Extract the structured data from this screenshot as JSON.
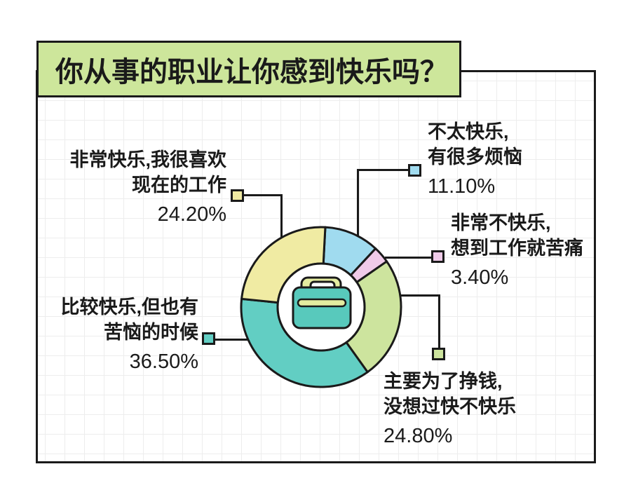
{
  "chart_data": {
    "type": "pie",
    "subtype": "donut",
    "title": "你从事的职业让你感到快乐吗？",
    "start_angle_deg": 3,
    "direction": "clockwise",
    "legend_position": "callouts",
    "center_icon": "briefcase",
    "segments": [
      {
        "label": "不太快乐,有很多烦恼",
        "value": 11.1,
        "display": "11.10%",
        "color": "#a0dbef"
      },
      {
        "label": "非常不快乐,想到工作就苦痛",
        "value": 3.4,
        "display": "3.40%",
        "color": "#f0cbe9"
      },
      {
        "label": "主要为了挣钱,没想过快不快乐",
        "value": 24.8,
        "display": "24.80%",
        "color": "#cde49e"
      },
      {
        "label": "比较快乐,但也有苦恼的时候",
        "value": 36.5,
        "display": "36.50%",
        "color": "#62cec3"
      },
      {
        "label": "非常快乐,我很喜欢现在的工作",
        "value": 24.2,
        "display": "24.20%",
        "color": "#f0eba3"
      }
    ]
  },
  "callouts": {
    "not_happy": {
      "line1": "不太快乐,",
      "line2": "有很多烦恼"
    },
    "very_unhappy": {
      "line1": "非常不快乐,",
      "line2": "想到工作就苦痛"
    },
    "for_money": {
      "line1": "主要为了挣钱,",
      "line2": "没想过快不快乐"
    },
    "fairly_happy": {
      "line1": "比较快乐,但也有",
      "line2": "苦恼的时候"
    },
    "very_happy": {
      "line1": "非常快乐,我很喜欢",
      "line2": "现在的工作"
    }
  },
  "colors": {
    "outline": "#1a1a1a",
    "title_bg": "#cde69b",
    "grid": "#ededed",
    "briefcase_body": "#58c9bc",
    "briefcase_accent": "#e4eca0"
  }
}
